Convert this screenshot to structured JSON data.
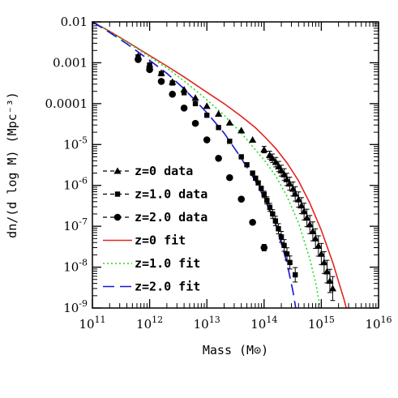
{
  "chart_data": {
    "type": "scatter",
    "title": "",
    "xlabel": "Mass (M⊙)",
    "ylabel": "dn/(d log M) (Mpc⁻³)",
    "x_scale": "log",
    "y_scale": "log",
    "xlim": [
      100000000000.0,
      1e+16
    ],
    "ylim": [
      1e-09,
      0.01
    ],
    "x_tick_labels": [
      {
        "value": 100000000000.0,
        "base": "10",
        "exp": "11"
      },
      {
        "value": 1000000000000.0,
        "base": "10",
        "exp": "12"
      },
      {
        "value": 10000000000000.0,
        "base": "10",
        "exp": "13"
      },
      {
        "value": 100000000000000.0,
        "base": "10",
        "exp": "14"
      },
      {
        "value": 1000000000000000.0,
        "base": "10",
        "exp": "15"
      },
      {
        "value": 1e+16,
        "base": "10",
        "exp": "16"
      }
    ],
    "y_tick_labels": [
      {
        "value": 0.01,
        "text": "0.01"
      },
      {
        "value": 0.001,
        "text": "0.001"
      },
      {
        "value": 0.0001,
        "text": "0.0001"
      },
      {
        "value": 1e-05,
        "base": "10",
        "exp": "-5"
      },
      {
        "value": 1e-06,
        "base": "10",
        "exp": "-6"
      },
      {
        "value": 1e-07,
        "base": "10",
        "exp": "-7"
      },
      {
        "value": 1e-08,
        "base": "10",
        "exp": "-8"
      },
      {
        "value": 1e-09,
        "base": "10",
        "exp": "-9"
      }
    ],
    "legend_position": "bottom-left",
    "grid": false,
    "series": [
      {
        "name": "z=0 data",
        "kind": "points",
        "marker": "triangle",
        "color": "#000000",
        "points": [
          [
            630000000000.0,
            0.00145
          ],
          [
            1000000000000.0,
            0.0009
          ],
          [
            1600000000000.0,
            0.00056
          ],
          [
            2500000000000.0,
            0.00034
          ],
          [
            4000000000000.0,
            0.00022
          ],
          [
            6300000000000.0,
            0.000138
          ],
          [
            10000000000000.0,
            8.7e-05
          ],
          [
            16000000000000.0,
            5.6e-05
          ],
          [
            25000000000000.0,
            3.4e-05
          ],
          [
            40000000000000.0,
            2.2e-05
          ],
          [
            63000000000000.0,
            1.3e-05
          ],
          [
            100000000000000.0,
            7.5e-06
          ],
          [
            125000000000000.0,
            5.5e-06
          ],
          [
            140000000000000.0,
            4.6e-06
          ],
          [
            160000000000000.0,
            3.7e-06
          ],
          [
            180000000000000.0,
            2.9e-06
          ],
          [
            200000000000000.0,
            2.3e-06
          ],
          [
            225000000000000.0,
            1.85e-06
          ],
          [
            250000000000000.0,
            1.4e-06
          ],
          [
            280000000000000.0,
            1.1e-06
          ],
          [
            320000000000000.0,
            8.2e-07
          ],
          [
            350000000000000.0,
            6.2e-07
          ],
          [
            400000000000000.0,
            4.5e-07
          ],
          [
            450000000000000.0,
            3.2e-07
          ],
          [
            500000000000000.0,
            2.3e-07
          ],
          [
            560000000000000.0,
            1.6e-07
          ],
          [
            630000000000000.0,
            1.1e-07
          ],
          [
            710000000000000.0,
            7.5e-08
          ],
          [
            790000000000000.0,
            5e-08
          ],
          [
            890000000000000.0,
            3.3e-08
          ],
          [
            1000000000000000.0,
            2.1e-08
          ],
          [
            1120000000000000.0,
            1.3e-08
          ],
          [
            1260000000000000.0,
            7.8e-09
          ],
          [
            1410000000000000.0,
            4.6e-09
          ],
          [
            1580000000000000.0,
            3e-09
          ]
        ]
      },
      {
        "name": "z=1.0 data",
        "kind": "points",
        "marker": "square",
        "color": "#000000",
        "points": [
          [
            630000000000.0,
            0.0014
          ],
          [
            1000000000000.0,
            0.00088
          ],
          [
            1600000000000.0,
            0.00054
          ],
          [
            2500000000000.0,
            0.00032
          ],
          [
            4000000000000.0,
            0.000185
          ],
          [
            6300000000000.0,
            0.0001
          ],
          [
            10000000000000.0,
            5.2e-05
          ],
          [
            16000000000000.0,
            2.6e-05
          ],
          [
            25000000000000.0,
            1.2e-05
          ],
          [
            40000000000000.0,
            5e-06
          ],
          [
            50000000000000.0,
            3.2e-06
          ],
          [
            63000000000000.0,
            2e-06
          ],
          [
            71000000000000.0,
            1.5e-06
          ],
          [
            79000000000000.0,
            1.15e-06
          ],
          [
            89000000000000.0,
            8.5e-07
          ],
          [
            100000000000000.0,
            6e-07
          ],
          [
            112000000000000.0,
            4.3e-07
          ],
          [
            126000000000000.0,
            2.9e-07
          ],
          [
            141000000000000.0,
            2e-07
          ],
          [
            158000000000000.0,
            1.35e-07
          ],
          [
            178000000000000.0,
            8.7e-08
          ],
          [
            200000000000000.0,
            5.5e-08
          ],
          [
            224000000000000.0,
            3.4e-08
          ],
          [
            251000000000000.0,
            2.1e-08
          ],
          [
            282000000000000.0,
            1.3e-08
          ],
          [
            350000000000000.0,
            6.5e-09
          ]
        ]
      },
      {
        "name": "z=2.0 data",
        "kind": "points",
        "marker": "circle",
        "color": "#000000",
        "points": [
          [
            630000000000.0,
            0.0012
          ],
          [
            1000000000000.0,
            0.00068
          ],
          [
            1600000000000.0,
            0.00035
          ],
          [
            2500000000000.0,
            0.00017
          ],
          [
            4000000000000.0,
            7.8e-05
          ],
          [
            6300000000000.0,
            3.3e-05
          ],
          [
            10000000000000.0,
            1.3e-05
          ],
          [
            16000000000000.0,
            4.6e-06
          ],
          [
            25000000000000.0,
            1.55e-06
          ],
          [
            40000000000000.0,
            4.6e-07
          ],
          [
            63000000000000.0,
            1.25e-07
          ],
          [
            100000000000000.0,
            3e-08
          ]
        ]
      },
      {
        "name": "z=0 fit",
        "kind": "line",
        "dash": "solid",
        "color": "#e0241e",
        "points": [
          [
            100000000000.0,
            0.01
          ],
          [
            200000000000.0,
            0.0059
          ],
          [
            400000000000.0,
            0.0033
          ],
          [
            1000000000000.0,
            0.0015
          ],
          [
            2000000000000.0,
            0.00083
          ],
          [
            4000000000000.0,
            0.00045
          ],
          [
            10000000000000.0,
            0.00019
          ],
          [
            20000000000000.0,
            0.0001
          ],
          [
            40000000000000.0,
            4.9e-05
          ],
          [
            70000000000000.0,
            2.6e-05
          ],
          [
            100000000000000.0,
            1.6e-05
          ],
          [
            160000000000000.0,
            8e-06
          ],
          [
            250000000000000.0,
            3.6e-06
          ],
          [
            400000000000000.0,
            1.3e-06
          ],
          [
            630000000000000.0,
            3.7e-07
          ],
          [
            1000000000000000.0,
            8e-08
          ],
          [
            1600000000000000.0,
            1.25e-08
          ],
          [
            2500000000000000.0,
            1.6e-09
          ],
          [
            3000000000000000.0,
            6e-10
          ]
        ]
      },
      {
        "name": "z=1.0 fit",
        "kind": "line",
        "dash": "dotted",
        "color": "#22dd22",
        "points": [
          [
            100000000000.0,
            0.01
          ],
          [
            200000000000.0,
            0.0058
          ],
          [
            400000000000.0,
            0.0032
          ],
          [
            1000000000000.0,
            0.0014
          ],
          [
            2000000000000.0,
            0.00074
          ],
          [
            4000000000000.0,
            0.00036
          ],
          [
            10000000000000.0,
            0.000125
          ],
          [
            20000000000000.0,
            5.2e-05
          ],
          [
            40000000000000.0,
            1.9e-05
          ],
          [
            70000000000000.0,
            7.5e-06
          ],
          [
            100000000000000.0,
            4.2e-06
          ],
          [
            160000000000000.0,
            1.7e-06
          ],
          [
            250000000000000.0,
            5.5e-07
          ],
          [
            400000000000000.0,
            1.2e-07
          ],
          [
            630000000000000.0,
            1.6e-08
          ],
          [
            800000000000000.0,
            4e-09
          ],
          [
            1000000000000000.0,
            7e-10
          ]
        ]
      },
      {
        "name": "z=2.0 fit",
        "kind": "line",
        "dash": "dashed",
        "color": "#1414d8",
        "points": [
          [
            100000000000.0,
            0.01
          ],
          [
            200000000000.0,
            0.0055
          ],
          [
            400000000000.0,
            0.0029
          ],
          [
            1000000000000.0,
            0.00115
          ],
          [
            2000000000000.0,
            0.00055
          ],
          [
            4000000000000.0,
            0.00023
          ],
          [
            10000000000000.0,
            6e-05
          ],
          [
            20000000000000.0,
            1.9e-05
          ],
          [
            40000000000000.0,
            4.6e-06
          ],
          [
            70000000000000.0,
            1.3e-06
          ],
          [
            100000000000000.0,
            5e-07
          ],
          [
            160000000000000.0,
            1.1e-07
          ],
          [
            250000000000000.0,
            1.3e-08
          ],
          [
            320000000000000.0,
            2.5e-09
          ],
          [
            380000000000000.0,
            6e-10
          ]
        ]
      }
    ]
  }
}
